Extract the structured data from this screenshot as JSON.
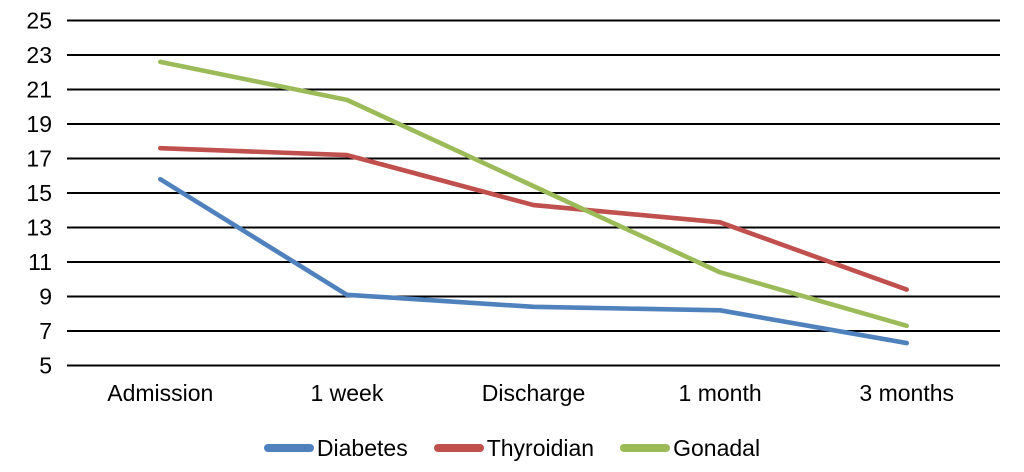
{
  "chart_data": {
    "type": "line",
    "title": "",
    "xlabel": "",
    "ylabel": "",
    "categories": [
      "Admission",
      "1 week",
      "Discharge",
      "1 month",
      "3 months"
    ],
    "series": [
      {
        "name": "Diabetes",
        "color": "#4F81BD",
        "values": [
          15.8,
          9.1,
          8.4,
          8.2,
          6.3
        ]
      },
      {
        "name": "Thyroidian",
        "color": "#C0504D",
        "values": [
          17.6,
          17.2,
          14.3,
          13.3,
          9.4
        ]
      },
      {
        "name": "Gonadal",
        "color": "#9BBB59",
        "values": [
          22.6,
          20.4,
          15.4,
          10.4,
          7.3
        ]
      }
    ],
    "ylim": [
      5,
      25
    ],
    "yticks": [
      5,
      7,
      9,
      11,
      13,
      15,
      17,
      19,
      21,
      23,
      25
    ],
    "grid": true,
    "gridline_color": "#000000",
    "text_color": "#000000",
    "background": "#FFFFFF",
    "legend_position": "bottom"
  }
}
